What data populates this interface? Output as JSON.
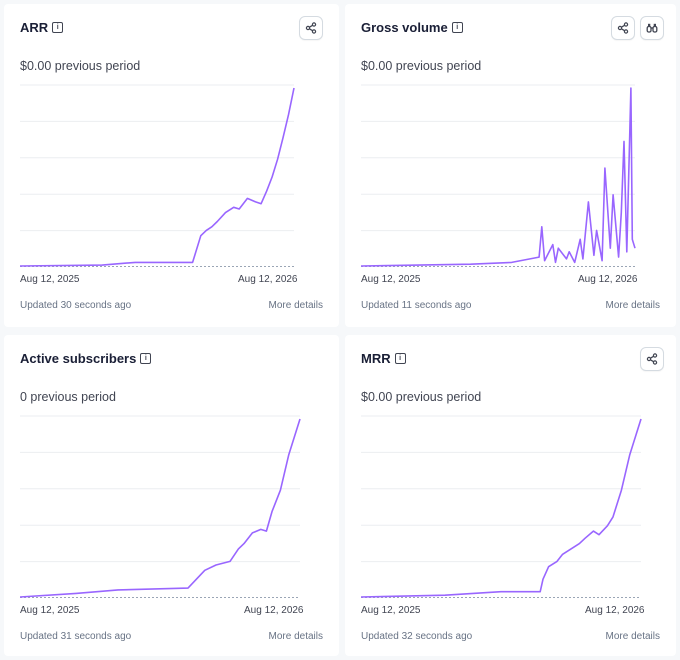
{
  "colors": {
    "line": "#9966ff",
    "grid": "#ebeef1",
    "baseline": "#9aa5b5"
  },
  "cards": [
    {
      "title": "ARR",
      "previous": "$0.00 previous period",
      "start_date": "Aug 12, 2025",
      "end_date": "Aug 12, 2026",
      "updated": "Updated 30 seconds ago",
      "more": "More details",
      "buttons": [
        "share-icon"
      ]
    },
    {
      "title": "Gross volume",
      "previous": "$0.00 previous period",
      "start_date": "Aug 12, 2025",
      "end_date": "Aug 12, 2026",
      "updated": "Updated 11 seconds ago",
      "more": "More details",
      "buttons": [
        "share-icon",
        "binoculars-icon"
      ]
    },
    {
      "title": "Active subscribers",
      "previous": "0 previous period",
      "start_date": "Aug 12, 2025",
      "end_date": "Aug 12, 2026",
      "updated": "Updated 31 seconds ago",
      "more": "More details",
      "buttons": []
    },
    {
      "title": "MRR",
      "previous": "$0.00 previous period",
      "start_date": "Aug 12, 2025",
      "end_date": "Aug 12, 2026",
      "updated": "Updated 32 seconds ago",
      "more": "More details",
      "buttons": [
        "share-icon"
      ]
    }
  ],
  "chart_data": [
    {
      "type": "line",
      "title": "ARR",
      "x_range": [
        "Aug 12, 2025",
        "Aug 12, 2026"
      ],
      "x": [
        0,
        0.3,
        0.42,
        0.63,
        0.66,
        0.68,
        0.7,
        0.72,
        0.75,
        0.78,
        0.8,
        0.83,
        0.86,
        0.88,
        0.9,
        0.92,
        0.94,
        0.96,
        0.98,
        1.0
      ],
      "y": [
        0,
        0.005,
        0.02,
        0.02,
        0.17,
        0.2,
        0.22,
        0.25,
        0.3,
        0.33,
        0.32,
        0.38,
        0.36,
        0.35,
        0.42,
        0.5,
        0.6,
        0.72,
        0.85,
        1.0
      ],
      "grid": true
    },
    {
      "type": "line",
      "title": "Gross volume",
      "x_range": [
        "Aug 12, 2025",
        "Aug 12, 2026"
      ],
      "x": [
        0,
        0.4,
        0.55,
        0.65,
        0.66,
        0.67,
        0.7,
        0.71,
        0.72,
        0.75,
        0.76,
        0.78,
        0.8,
        0.81,
        0.83,
        0.85,
        0.86,
        0.88,
        0.89,
        0.91,
        0.92,
        0.94,
        0.95,
        0.96,
        0.97,
        0.985,
        0.99,
        1.0
      ],
      "y": [
        0,
        0.01,
        0.02,
        0.05,
        0.22,
        0.03,
        0.12,
        0.02,
        0.1,
        0.04,
        0.08,
        0.02,
        0.15,
        0.04,
        0.36,
        0.06,
        0.2,
        0.03,
        0.55,
        0.1,
        0.4,
        0.05,
        0.3,
        0.7,
        0.08,
        1.0,
        0.15,
        0.1
      ],
      "grid": true
    },
    {
      "type": "line",
      "title": "Active subscribers",
      "x_range": [
        "Aug 12, 2025",
        "Aug 12, 2026"
      ],
      "x": [
        0,
        0.2,
        0.35,
        0.6,
        0.63,
        0.66,
        0.7,
        0.75,
        0.78,
        0.8,
        0.83,
        0.86,
        0.88,
        0.9,
        0.93,
        0.96,
        1.0
      ],
      "y": [
        0,
        0.02,
        0.04,
        0.05,
        0.1,
        0.15,
        0.18,
        0.2,
        0.27,
        0.3,
        0.36,
        0.38,
        0.37,
        0.48,
        0.6,
        0.8,
        1.0
      ],
      "grid": true
    },
    {
      "type": "line",
      "title": "MRR",
      "x_range": [
        "Aug 12, 2025",
        "Aug 12, 2026"
      ],
      "x": [
        0,
        0.3,
        0.5,
        0.64,
        0.65,
        0.67,
        0.7,
        0.72,
        0.75,
        0.78,
        0.8,
        0.83,
        0.85,
        0.88,
        0.9,
        0.93,
        0.96,
        1.0
      ],
      "y": [
        0,
        0.01,
        0.03,
        0.03,
        0.1,
        0.17,
        0.2,
        0.24,
        0.27,
        0.3,
        0.33,
        0.37,
        0.35,
        0.4,
        0.45,
        0.6,
        0.8,
        1.0
      ],
      "grid": true
    }
  ]
}
